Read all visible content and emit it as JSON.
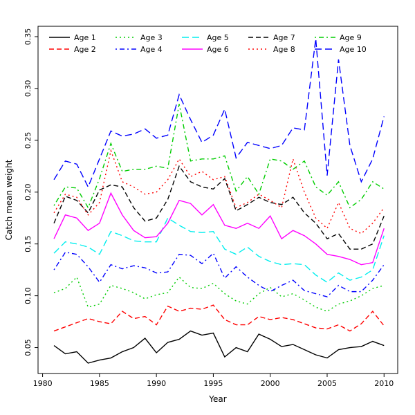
{
  "chart_data": {
    "type": "line",
    "title": "",
    "xlabel": "Year",
    "ylabel": "Catch mean weight",
    "xlim": [
      1979.6,
      2011.2
    ],
    "ylim": [
      0.025,
      0.36
    ],
    "xticks": [
      1980,
      1985,
      1990,
      1995,
      2000,
      2005,
      2010
    ],
    "yticks": [
      0.05,
      0.1,
      0.15,
      0.2,
      0.25,
      0.3,
      0.35
    ],
    "grid": false,
    "legend_position": "top-inside",
    "legend_columns": 5,
    "x": [
      1981,
      1982,
      1983,
      1984,
      1985,
      1986,
      1987,
      1988,
      1989,
      1990,
      1991,
      1992,
      1993,
      1994,
      1995,
      1996,
      1997,
      1998,
      1999,
      2000,
      2001,
      2002,
      2003,
      2004,
      2005,
      2006,
      2007,
      2008,
      2009,
      2010
    ],
    "series": [
      {
        "name": "Age 1",
        "color": "#000000",
        "dash": "",
        "values": [
          0.052,
          0.044,
          0.046,
          0.035,
          0.038,
          0.04,
          0.046,
          0.05,
          0.059,
          0.045,
          0.055,
          0.058,
          0.066,
          0.062,
          0.064,
          0.041,
          0.05,
          0.046,
          0.063,
          0.058,
          0.051,
          0.053,
          0.048,
          0.043,
          0.04,
          0.048,
          0.05,
          0.051,
          0.056,
          0.052
        ]
      },
      {
        "name": "Age 2",
        "color": "#ff0000",
        "dash": "7,4",
        "values": [
          0.066,
          0.07,
          0.074,
          0.078,
          0.075,
          0.073,
          0.085,
          0.078,
          0.08,
          0.072,
          0.09,
          0.085,
          0.088,
          0.087,
          0.091,
          0.077,
          0.072,
          0.072,
          0.08,
          0.077,
          0.079,
          0.077,
          0.073,
          0.069,
          0.068,
          0.072,
          0.066,
          0.073,
          0.085,
          0.071
        ]
      },
      {
        "name": "Age 3",
        "color": "#00cd00",
        "dash": "2,4",
        "values": [
          0.103,
          0.107,
          0.118,
          0.089,
          0.092,
          0.11,
          0.107,
          0.103,
          0.097,
          0.101,
          0.103,
          0.118,
          0.108,
          0.107,
          0.112,
          0.102,
          0.095,
          0.092,
          0.102,
          0.108,
          0.099,
          0.102,
          0.096,
          0.089,
          0.085,
          0.092,
          0.095,
          0.1,
          0.107,
          0.11
        ]
      },
      {
        "name": "Age 4",
        "color": "#0000ff",
        "dash": "2,4,7,4",
        "values": [
          0.125,
          0.142,
          0.14,
          0.128,
          0.113,
          0.13,
          0.126,
          0.129,
          0.127,
          0.122,
          0.123,
          0.14,
          0.139,
          0.131,
          0.141,
          0.117,
          0.128,
          0.118,
          0.11,
          0.104,
          0.11,
          0.115,
          0.105,
          0.102,
          0.099,
          0.11,
          0.104,
          0.104,
          0.115,
          0.13
        ]
      },
      {
        "name": "Age 5",
        "color": "#00eeee",
        "dash": "10,5",
        "values": [
          0.141,
          0.152,
          0.15,
          0.147,
          0.14,
          0.162,
          0.158,
          0.153,
          0.152,
          0.152,
          0.175,
          0.168,
          0.162,
          0.161,
          0.162,
          0.145,
          0.14,
          0.147,
          0.138,
          0.133,
          0.13,
          0.131,
          0.13,
          0.12,
          0.113,
          0.122,
          0.115,
          0.118,
          0.125,
          0.158
        ]
      },
      {
        "name": "Age 6",
        "color": "#ff00ff",
        "dash": "",
        "values": [
          0.155,
          0.178,
          0.175,
          0.163,
          0.17,
          0.199,
          0.178,
          0.163,
          0.156,
          0.157,
          0.17,
          0.192,
          0.189,
          0.178,
          0.188,
          0.168,
          0.165,
          0.17,
          0.165,
          0.177,
          0.155,
          0.163,
          0.158,
          0.15,
          0.14,
          0.138,
          0.135,
          0.13,
          0.132,
          0.165
        ]
      },
      {
        "name": "Age 7",
        "color": "#000000",
        "dash": "7,4",
        "values": [
          0.17,
          0.196,
          0.192,
          0.18,
          0.202,
          0.207,
          0.205,
          0.185,
          0.172,
          0.175,
          0.193,
          0.225,
          0.21,
          0.205,
          0.203,
          0.213,
          0.182,
          0.188,
          0.195,
          0.19,
          0.188,
          0.195,
          0.18,
          0.17,
          0.155,
          0.16,
          0.145,
          0.145,
          0.15,
          0.177
        ]
      },
      {
        "name": "Age 8",
        "color": "#ff0000",
        "dash": "2,4",
        "values": [
          0.18,
          0.198,
          0.195,
          0.178,
          0.19,
          0.24,
          0.21,
          0.205,
          0.198,
          0.2,
          0.212,
          0.232,
          0.215,
          0.22,
          0.212,
          0.215,
          0.185,
          0.19,
          0.198,
          0.192,
          0.185,
          0.232,
          0.2,
          0.175,
          0.165,
          0.19,
          0.165,
          0.16,
          0.17,
          0.185
        ]
      },
      {
        "name": "Age 9",
        "color": "#00cd00",
        "dash": "2,4,7,4",
        "values": [
          0.187,
          0.205,
          0.204,
          0.185,
          0.213,
          0.247,
          0.22,
          0.222,
          0.222,
          0.225,
          0.223,
          0.285,
          0.23,
          0.232,
          0.232,
          0.235,
          0.201,
          0.215,
          0.198,
          0.232,
          0.23,
          0.222,
          0.23,
          0.205,
          0.197,
          0.21,
          0.185,
          0.193,
          0.21,
          0.203
        ]
      },
      {
        "name": "Age 10",
        "color": "#0000ff",
        "dash": "10,5",
        "values": [
          0.212,
          0.23,
          0.227,
          0.205,
          0.232,
          0.259,
          0.254,
          0.256,
          0.261,
          0.252,
          0.255,
          0.294,
          0.27,
          0.248,
          0.255,
          0.28,
          0.233,
          0.248,
          0.245,
          0.242,
          0.245,
          0.262,
          0.26,
          0.348,
          0.216,
          0.328,
          0.245,
          0.21,
          0.232,
          0.273
        ]
      }
    ]
  }
}
